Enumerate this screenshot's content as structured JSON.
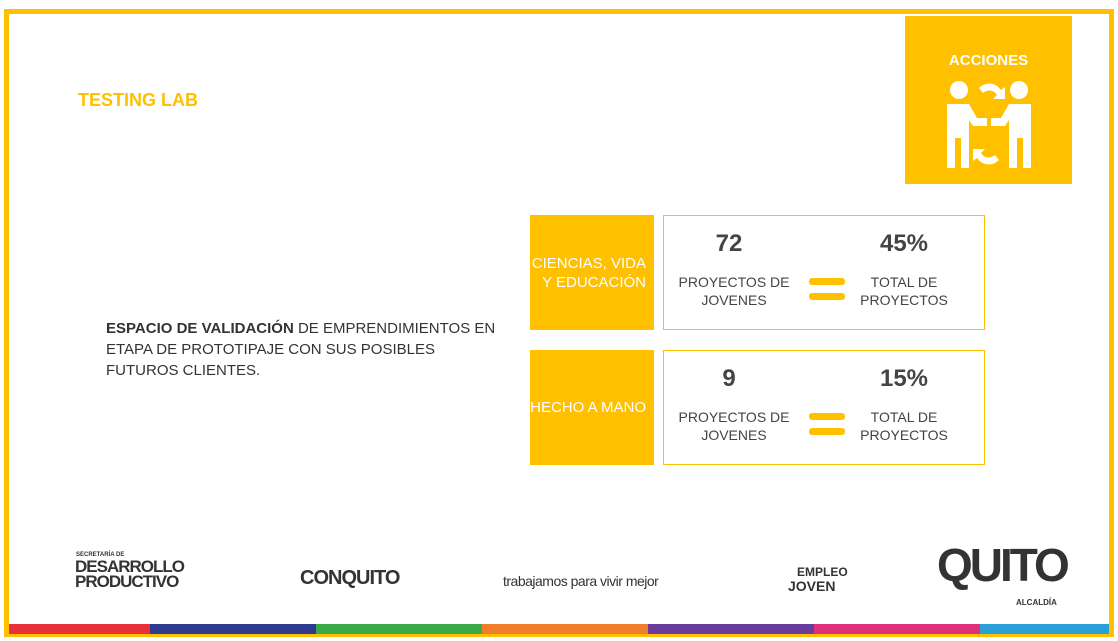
{
  "header": {
    "title": "TESTING LAB",
    "badge": "ACCIONES"
  },
  "description": {
    "bold": "ESPACIO DE VALIDACIÓN",
    "text": " DE EMPRENDIMIENTOS EN ETAPA DE PROTOTIPAJE CON SUS POSIBLES FUTUROS CLIENTES."
  },
  "rows": [
    {
      "category": "CIENCIAS, VIDA Y EDUCACIÓN",
      "count": "72",
      "count_label": "PROYECTOS DE JOVENES",
      "share": "45%",
      "share_label": "TOTAL DE PROYECTOS"
    },
    {
      "category": "HECHO A MANO",
      "count": "9",
      "count_label": "PROYECTOS DE JOVENES",
      "share": "15%",
      "share_label": "TOTAL DE PROYECTOS"
    }
  ],
  "logos": {
    "desarrollo_small": "SECRETARÍA DE",
    "desarrollo": "DESARROLLO PRODUCTIVO",
    "conquito": "CONQUITO",
    "slogan": "trabajamos para vivir mejor",
    "empleo": "EMPLEO",
    "joven": "JOVEN",
    "quito": "QUITO",
    "alcaldia": "ALCALDÍA"
  }
}
